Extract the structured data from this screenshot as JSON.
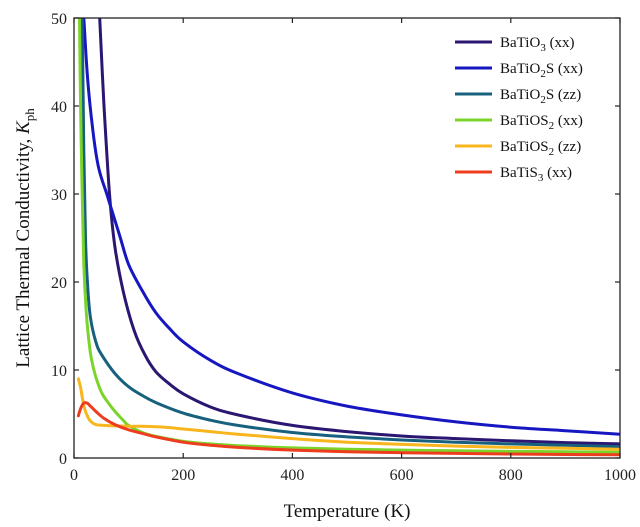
{
  "chart_data": {
    "type": "line",
    "xlabel": "Temperature  (K)",
    "ylabel": {
      "main": "Lattice Thermal Conductivity, ",
      "symbol": "K",
      "subscript": "ph"
    },
    "xlim": [
      0,
      1000
    ],
    "ylim": [
      0,
      50
    ],
    "xticks": [
      "0",
      "200",
      "400",
      "600",
      "800",
      "1000"
    ],
    "yticks": [
      "0",
      "10",
      "20",
      "30",
      "40",
      "50"
    ],
    "grid": false,
    "legend_position": "top-right",
    "series": [
      {
        "name": "BaTiO3 (xx)",
        "label": {
          "pre": "BaTiO",
          "sub": "3",
          "post": " (xx)"
        },
        "color": "#2b1672",
        "x": [
          47,
          55,
          65,
          75,
          90,
          110,
          130,
          150,
          175,
          200,
          250,
          300,
          400,
          500,
          600,
          700,
          800,
          900,
          1000
        ],
        "y": [
          50,
          40,
          30,
          24,
          19,
          14.5,
          11.7,
          9.8,
          8.4,
          7.3,
          5.8,
          4.9,
          3.7,
          3.0,
          2.5,
          2.2,
          1.95,
          1.75,
          1.6
        ]
      },
      {
        "name": "BaTiO2S (xx)",
        "label": {
          "pre": "BaTiO",
          "sub": "2",
          "post": "S (xx)"
        },
        "color": "#1717c2",
        "x": [
          18,
          25,
          35,
          45,
          60,
          70,
          85,
          100,
          125,
          150,
          175,
          200,
          250,
          300,
          400,
          500,
          600,
          700,
          800,
          900,
          1000
        ],
        "y": [
          50,
          43,
          37,
          33,
          30,
          28,
          25,
          22,
          19,
          16.5,
          14.7,
          13.2,
          11.1,
          9.6,
          7.4,
          5.9,
          4.9,
          4.1,
          3.5,
          3.1,
          2.7
        ]
      },
      {
        "name": "BaTiO2S (zz)",
        "label": {
          "pre": "BaTiO",
          "sub": "2",
          "post": "S (zz)"
        },
        "color": "#17607e",
        "x": [
          15,
          18,
          21,
          25,
          30,
          40,
          50,
          75,
          100,
          125,
          150,
          200,
          250,
          300,
          400,
          500,
          600,
          700,
          800,
          900,
          1000
        ],
        "y": [
          50,
          35,
          25,
          19.5,
          16,
          13.2,
          11.8,
          9.6,
          8.1,
          7.1,
          6.3,
          5.1,
          4.3,
          3.7,
          2.9,
          2.4,
          2.05,
          1.8,
          1.6,
          1.45,
          1.3
        ]
      },
      {
        "name": "BaTiOS2 (xx)",
        "label": {
          "pre": "BaTiOS",
          "sub": "2",
          "post": " (xx)"
        },
        "color": "#7bd42a",
        "x": [
          10,
          12,
          15,
          18,
          22,
          27,
          32,
          40,
          50,
          60,
          75,
          90,
          100,
          125,
          150,
          200,
          250,
          300,
          400,
          500,
          600,
          700,
          800,
          900,
          1000
        ],
        "y": [
          50,
          40,
          30,
          22,
          17,
          13.5,
          11.2,
          9.2,
          7.5,
          6.5,
          5.3,
          4.3,
          3.7,
          2.9,
          2.45,
          1.9,
          1.6,
          1.4,
          1.15,
          1.0,
          0.9,
          0.82,
          0.75,
          0.7,
          0.65
        ]
      },
      {
        "name": "BaTiOS2 (zz)",
        "label": {
          "pre": "BaTiOS",
          "sub": "2",
          "post": " (zz)"
        },
        "color": "#f8b51c",
        "x": [
          8,
          12,
          16,
          20,
          25,
          30,
          40,
          55,
          75,
          100,
          125,
          150,
          175,
          200,
          250,
          300,
          400,
          500,
          600,
          700,
          800,
          900,
          1000
        ],
        "y": [
          9.0,
          8.0,
          6.6,
          5.5,
          4.7,
          4.2,
          3.8,
          3.7,
          3.65,
          3.6,
          3.6,
          3.55,
          3.45,
          3.3,
          3.0,
          2.7,
          2.2,
          1.8,
          1.55,
          1.35,
          1.2,
          1.1,
          1.0
        ]
      },
      {
        "name": "BaTiS3 (xx)",
        "label": {
          "pre": "BaTiS",
          "sub": "3",
          "post": " (xx)"
        },
        "color": "#ed3d1e",
        "x": [
          8,
          12,
          16,
          20,
          25,
          30,
          40,
          55,
          75,
          100,
          125,
          150,
          200,
          250,
          300,
          400,
          500,
          600,
          700,
          800,
          900,
          1000
        ],
        "y": [
          4.8,
          5.6,
          6.1,
          6.3,
          6.2,
          5.9,
          5.3,
          4.5,
          3.8,
          3.2,
          2.8,
          2.4,
          1.8,
          1.45,
          1.2,
          0.9,
          0.72,
          0.6,
          0.52,
          0.45,
          0.4,
          0.36
        ]
      }
    ]
  }
}
